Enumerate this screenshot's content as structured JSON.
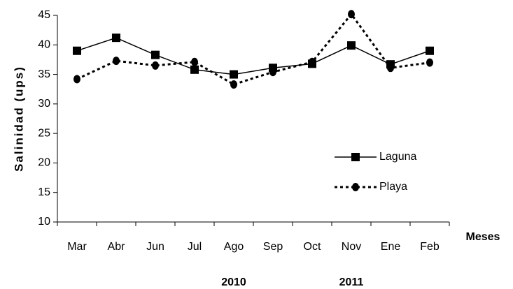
{
  "chart_data": {
    "type": "line",
    "y_label": "Salinidad (ups)",
    "x_label": "Meses",
    "categories": [
      "Mar",
      "Abr",
      "Jun",
      "Jul",
      "Ago",
      "Sep",
      "Oct",
      "Nov",
      "Ene",
      "Feb"
    ],
    "series": [
      {
        "name": "Laguna",
        "color": "#000000",
        "dash": "solid",
        "marker": "square",
        "values": [
          39,
          41.2,
          38.3,
          35.8,
          35,
          36.1,
          36.8,
          39.9,
          36.7,
          39
        ]
      },
      {
        "name": "Playa",
        "color": "#000000",
        "dash": "dotted",
        "marker": "circle",
        "values": [
          34.2,
          37.3,
          36.5,
          37.1,
          33.3,
          35.4,
          37.1,
          45.2,
          36.1,
          37
        ]
      }
    ],
    "ylim": [
      10,
      45
    ],
    "yticks": [
      10,
      15,
      20,
      25,
      30,
      35,
      40,
      45
    ],
    "grid": false,
    "legend": "right",
    "annotations": [
      {
        "text": "2010",
        "category": 4
      },
      {
        "text": "2011",
        "category": 7
      }
    ]
  }
}
